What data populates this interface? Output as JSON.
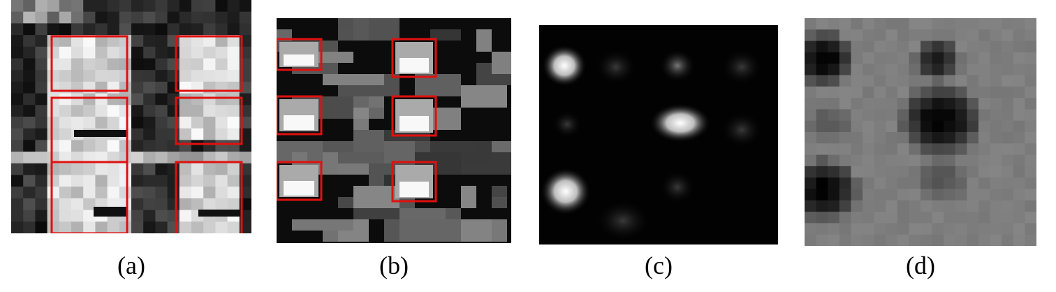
{
  "panels": [
    {
      "id": "a",
      "caption": "(a)",
      "style": "pixelated grayscale feature map with six highlighted regions",
      "highlight_color": "#e01010"
    },
    {
      "id": "b",
      "caption": "(b)",
      "style": "pixelated grayscale feature map with six highlighted regions",
      "highlight_color": "#e01010"
    },
    {
      "id": "c",
      "caption": "(c)",
      "style": "smooth grayscale heatmap with bright blobs"
    },
    {
      "id": "d",
      "caption": "(d)",
      "style": "gray map with dark blobs"
    }
  ],
  "colors": {
    "background": "#ffffff",
    "highlight": "#e01010",
    "dark": "#000000",
    "light": "#ffffff",
    "mid_gray": "#808080"
  }
}
